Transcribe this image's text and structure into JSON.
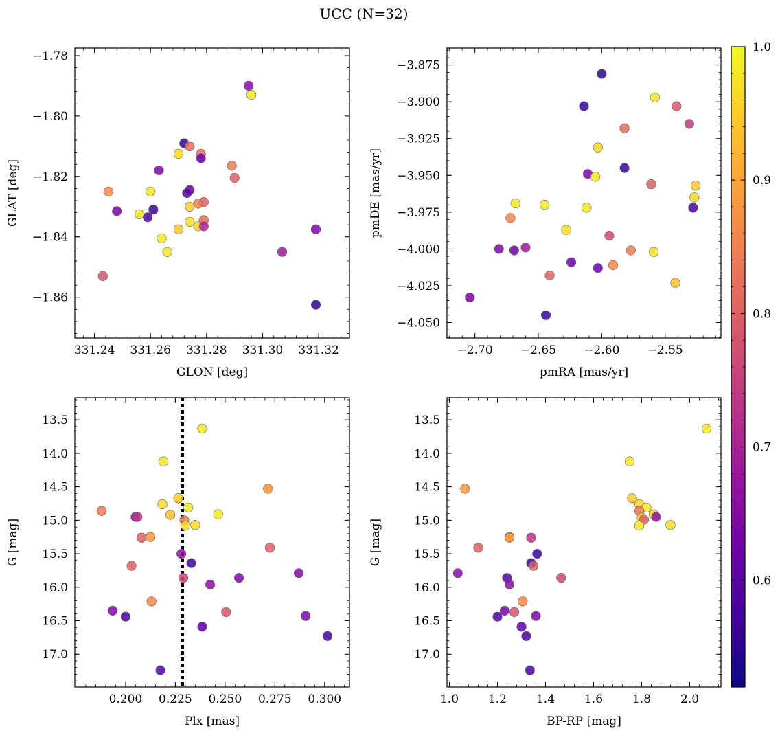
{
  "suptitle": "UCC (N=32)",
  "colorbar": {
    "range": [
      0.52,
      1.0
    ],
    "ticks": [
      0.6,
      0.7,
      0.8,
      0.9,
      1.0
    ],
    "tick_labels": [
      "0.6",
      "0.7",
      "0.8",
      "0.9",
      "1.0"
    ],
    "colormap": "plasma",
    "stops": [
      "#0d0887",
      "#46039f",
      "#7201a8",
      "#9c179e",
      "#bd3786",
      "#d8576b",
      "#ed7953",
      "#fb9f3a",
      "#fdca26",
      "#f0f921"
    ]
  },
  "chart_data": [
    {
      "type": "scatter",
      "id": "ax1",
      "xlabel": "GLON [deg]",
      "ylabel": "GLAT [deg]",
      "xlim": [
        331.233,
        331.331
      ],
      "ylim": [
        -1.8735,
        -1.7775
      ],
      "xticks": [
        331.24,
        331.26,
        331.28,
        331.3,
        331.32
      ],
      "xtick_labels": [
        "331.24",
        "331.26",
        "331.28",
        "331.30",
        "331.32"
      ],
      "yticks": [
        -1.78,
        -1.8,
        -1.82,
        -1.84,
        -1.86
      ],
      "ytick_labels": [
        "−1.78",
        "−1.80",
        "−1.82",
        "−1.84",
        "−1.86"
      ],
      "x": [
        331.295,
        331.296,
        331.272,
        331.274,
        331.27,
        331.278,
        331.278,
        331.263,
        331.289,
        331.245,
        331.26,
        331.274,
        331.273,
        331.29,
        331.248,
        331.279,
        331.277,
        331.274,
        331.261,
        331.256,
        331.259,
        331.274,
        331.279,
        331.277,
        331.27,
        331.279,
        331.264,
        331.266,
        331.307,
        331.319,
        331.243,
        331.319
      ],
      "y": [
        -1.79,
        -1.793,
        -1.809,
        -1.81,
        -1.8125,
        -1.8125,
        -1.814,
        -1.818,
        -1.8165,
        -1.825,
        -1.825,
        -1.8245,
        -1.8255,
        -1.8205,
        -1.8315,
        -1.8285,
        -1.829,
        -1.83,
        -1.831,
        -1.8325,
        -1.8335,
        -1.835,
        -1.8345,
        -1.8365,
        -1.8375,
        -1.8365,
        -1.8405,
        -1.845,
        -1.845,
        -1.8375,
        -1.853,
        -1.8625
      ],
      "c": [
        0.65,
        0.98,
        0.55,
        0.82,
        0.96,
        0.82,
        0.62,
        0.64,
        0.84,
        0.86,
        0.98,
        0.62,
        0.6,
        0.8,
        0.63,
        0.8,
        0.84,
        0.95,
        0.56,
        0.97,
        0.58,
        0.97,
        0.82,
        0.96,
        0.94,
        0.7,
        0.98,
        0.98,
        0.68,
        0.64,
        0.78,
        0.55
      ]
    },
    {
      "type": "scatter",
      "id": "ax2",
      "xlabel": "pmRA [mas/yr]",
      "ylabel": "pmDE [mas/yr]",
      "xlim": [
        -2.722,
        -2.506
      ],
      "ylim": [
        -4.0605,
        -3.8635
      ],
      "xticks": [
        -2.7,
        -2.65,
        -2.6,
        -2.55
      ],
      "xtick_labels": [
        "−2.70",
        "−2.65",
        "−2.60",
        "−2.55"
      ],
      "yticks": [
        -3.875,
        -3.9,
        -3.925,
        -3.95,
        -3.975,
        -4.0,
        -4.025,
        -4.05
      ],
      "ytick_labels": [
        "−3.875",
        "−3.900",
        "−3.925",
        "−3.950",
        "−3.975",
        "−4.000",
        "−4.025",
        "−4.050"
      ],
      "x": [
        -2.6,
        -2.614,
        -2.558,
        -2.541,
        -2.531,
        -2.582,
        -2.603,
        -2.582,
        -2.611,
        -2.605,
        -2.561,
        -2.526,
        -2.527,
        -2.528,
        -2.668,
        -2.645,
        -2.612,
        -2.672,
        -2.628,
        -2.594,
        -2.681,
        -2.669,
        -2.66,
        -2.577,
        -2.559,
        -2.624,
        -2.591,
        -2.603,
        -2.641,
        -2.542,
        -2.704,
        -2.644
      ],
      "y": [
        -3.881,
        -3.903,
        -3.897,
        -3.903,
        -3.915,
        -3.918,
        -3.931,
        -3.945,
        -3.949,
        -3.951,
        -3.956,
        -3.957,
        -3.965,
        -3.972,
        -3.969,
        -3.97,
        -3.972,
        -3.979,
        -3.987,
        -3.991,
        -4.0,
        -4.001,
        -3.999,
        -4.001,
        -4.002,
        -4.009,
        -4.011,
        -4.013,
        -4.018,
        -4.023,
        -4.033,
        -4.045
      ],
      "c": [
        0.55,
        0.56,
        0.97,
        0.78,
        0.74,
        0.82,
        0.96,
        0.56,
        0.64,
        0.98,
        0.8,
        0.94,
        0.96,
        0.57,
        0.98,
        0.98,
        0.98,
        0.86,
        0.97,
        0.76,
        0.64,
        0.62,
        0.68,
        0.84,
        0.98,
        0.62,
        0.86,
        0.62,
        0.8,
        0.94,
        0.63,
        0.56
      ]
    },
    {
      "type": "scatter",
      "id": "ax3",
      "xlabel": "Plx [mas]",
      "ylabel": "G [mag]",
      "xlim": [
        0.1745,
        0.3125
      ],
      "ylim": [
        17.49,
        13.17
      ],
      "y_inverted": true,
      "xticks": [
        0.2,
        0.225,
        0.25,
        0.275,
        0.3
      ],
      "xtick_labels": [
        "0.200",
        "0.225",
        "0.250",
        "0.275",
        "0.300"
      ],
      "yticks": [
        13.5,
        14.0,
        14.5,
        15.0,
        15.5,
        16.0,
        16.5,
        17.0
      ],
      "ytick_labels": [
        "13.5",
        "14.0",
        "14.5",
        "15.0",
        "15.5",
        "16.0",
        "16.5",
        "17.0"
      ],
      "vline": {
        "x": 0.2285,
        "style": "dotted"
      },
      "x": [
        0.2385,
        0.219,
        0.2715,
        0.188,
        0.2265,
        0.2185,
        0.2315,
        0.2225,
        0.2465,
        0.205,
        0.206,
        0.2295,
        0.235,
        0.23,
        0.2125,
        0.208,
        0.2725,
        0.228,
        0.233,
        0.203,
        0.229,
        0.257,
        0.2425,
        0.287,
        0.213,
        0.2505,
        0.1935,
        0.2,
        0.2905,
        0.2385,
        0.3015,
        0.2175
      ],
      "y": [
        13.63,
        14.12,
        14.53,
        14.86,
        14.67,
        14.76,
        14.81,
        14.92,
        14.91,
        14.95,
        14.95,
        15.0,
        15.07,
        15.08,
        15.25,
        15.26,
        15.41,
        15.5,
        15.64,
        15.68,
        15.86,
        15.86,
        15.96,
        15.79,
        16.21,
        16.37,
        16.35,
        16.44,
        16.43,
        16.59,
        16.73,
        17.24
      ],
      "c": [
        0.98,
        0.98,
        0.88,
        0.84,
        0.95,
        0.96,
        0.98,
        0.93,
        0.98,
        0.66,
        0.73,
        0.84,
        0.96,
        0.97,
        0.88,
        0.8,
        0.8,
        0.67,
        0.56,
        0.8,
        0.76,
        0.64,
        0.66,
        0.65,
        0.86,
        0.78,
        0.64,
        0.58,
        0.64,
        0.6,
        0.57,
        0.58
      ]
    },
    {
      "type": "scatter",
      "id": "ax4",
      "xlabel": "BP-RP [mag]",
      "ylabel": "G [mag]",
      "xlim": [
        0.99,
        2.13
      ],
      "ylim": [
        17.49,
        13.17
      ],
      "y_inverted": true,
      "xticks": [
        1.0,
        1.2,
        1.4,
        1.6,
        1.8,
        2.0
      ],
      "xtick_labels": [
        "1.0",
        "1.2",
        "1.4",
        "1.6",
        "1.8",
        "2.0"
      ],
      "yticks": [
        13.5,
        14.0,
        14.5,
        15.0,
        15.5,
        16.0,
        16.5,
        17.0
      ],
      "ytick_labels": [
        "13.5",
        "14.0",
        "14.5",
        "15.0",
        "15.5",
        "16.0",
        "16.5",
        "17.0"
      ],
      "x": [
        2.07,
        1.75,
        1.065,
        1.79,
        1.76,
        1.82,
        1.79,
        1.85,
        1.86,
        1.8,
        1.81,
        1.92,
        1.79,
        1.25,
        1.34,
        1.12,
        1.365,
        1.34,
        1.35,
        1.035,
        1.24,
        1.25,
        1.465,
        1.305,
        1.27,
        1.23,
        1.2,
        1.36,
        1.3,
        1.32,
        1.335,
        1.25
      ],
      "y": [
        13.63,
        14.12,
        14.53,
        14.76,
        14.67,
        14.81,
        14.86,
        14.91,
        14.95,
        14.96,
        14.99,
        15.07,
        15.08,
        15.25,
        15.26,
        15.41,
        15.5,
        15.64,
        15.68,
        15.79,
        15.86,
        15.96,
        15.86,
        16.21,
        16.37,
        16.35,
        16.44,
        16.43,
        16.59,
        16.73,
        17.24,
        15.26
      ],
      "c": [
        0.98,
        0.98,
        0.88,
        0.96,
        0.95,
        0.98,
        0.84,
        0.96,
        0.66,
        0.93,
        0.8,
        0.97,
        0.98,
        0.88,
        0.73,
        0.8,
        0.56,
        0.56,
        0.8,
        0.65,
        0.58,
        0.66,
        0.76,
        0.86,
        0.78,
        0.64,
        0.58,
        0.64,
        0.6,
        0.57,
        0.58,
        0.88
      ]
    }
  ]
}
